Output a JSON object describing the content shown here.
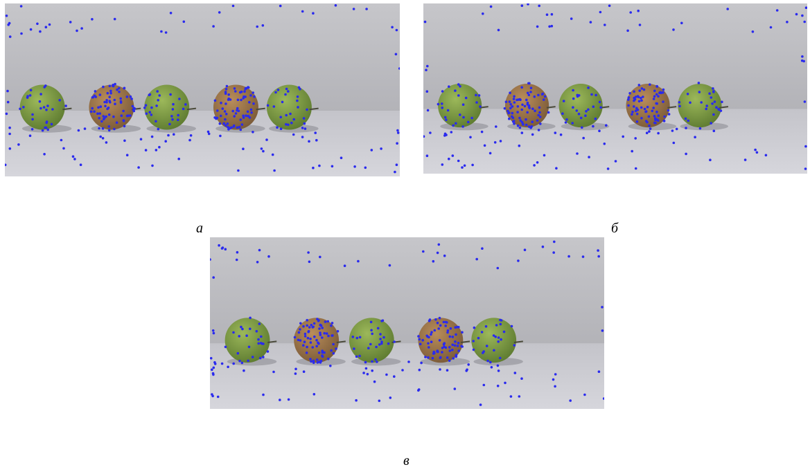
{
  "figure": {
    "panels": [
      {
        "label": "а"
      },
      {
        "label": "б"
      },
      {
        "label": "в"
      }
    ]
  }
}
